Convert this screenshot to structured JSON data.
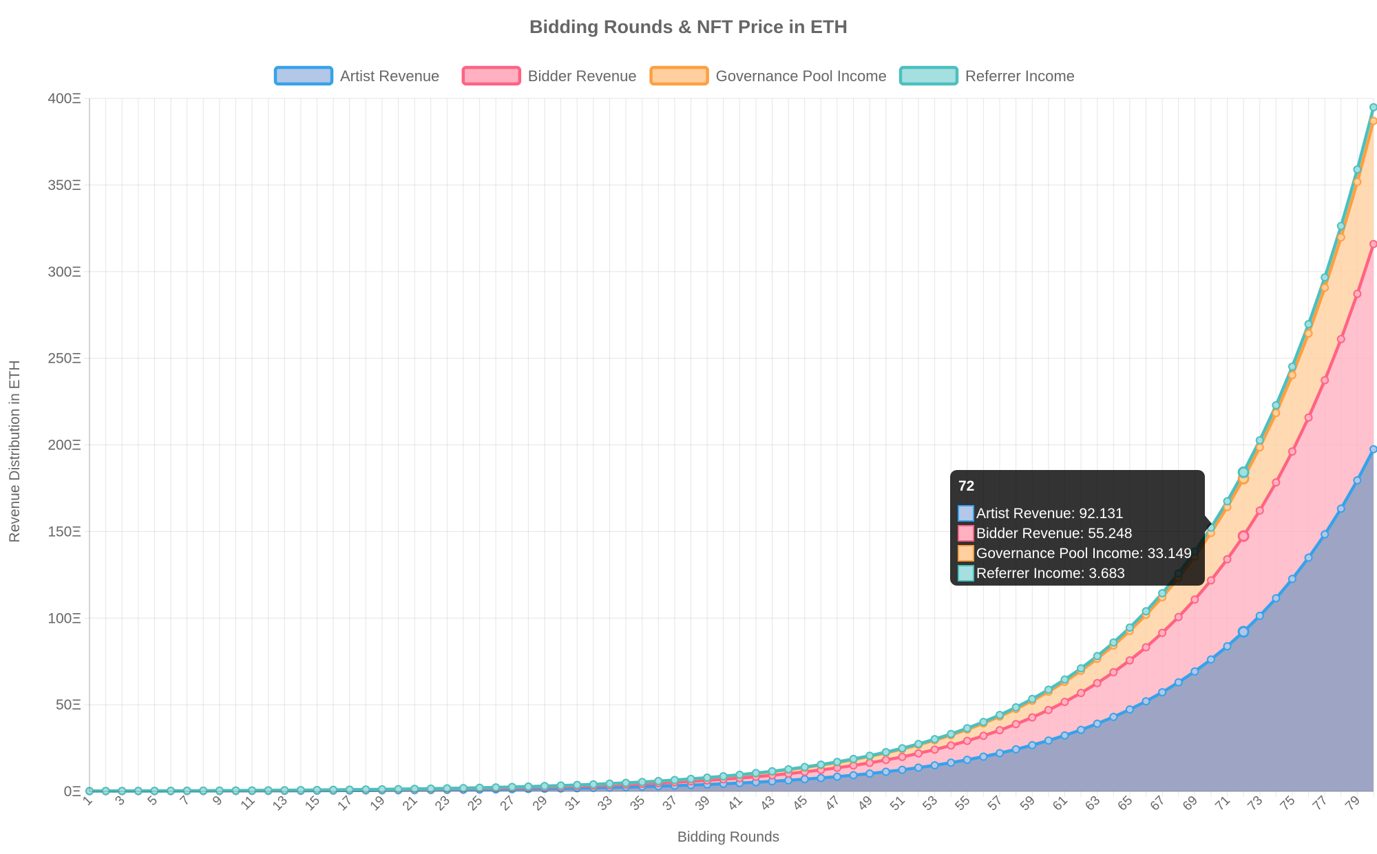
{
  "chart_data": {
    "type": "area",
    "title": "Bidding Rounds & NFT Price in ETH",
    "xlabel": "Bidding Rounds",
    "ylabel": "Revenue Distribution in ETH",
    "ylim": [
      0,
      400
    ],
    "y_ticks": [
      0,
      50,
      100,
      150,
      200,
      250,
      300,
      350,
      400
    ],
    "y_tick_suffix": "Ξ",
    "x_range": [
      1,
      80
    ],
    "x_tick_labels": [
      "1",
      "3",
      "5",
      "7",
      "9",
      "11",
      "13",
      "15",
      "17",
      "19",
      "21",
      "23",
      "25",
      "27",
      "29",
      "31",
      "33",
      "35",
      "37",
      "39",
      "41",
      "43",
      "45",
      "47",
      "49",
      "51",
      "53",
      "55",
      "57",
      "59",
      "61",
      "63",
      "65",
      "67",
      "69",
      "71",
      "73",
      "75",
      "77",
      "79"
    ],
    "stacked": true,
    "grid": true,
    "legend_position": "top",
    "growth_per_round": 1.1,
    "series": [
      {
        "name": "Artist Revenue",
        "color": "#36a2eb",
        "fill": "#b3c7e6",
        "value_at_72": 92.131
      },
      {
        "name": "Bidder Revenue",
        "color": "#ff6384",
        "fill": "#ffb1c1",
        "value_at_72": 55.248
      },
      {
        "name": "Governance Pool Income",
        "color": "#ff9f40",
        "fill": "#ffcf9f",
        "value_at_72": 33.149
      },
      {
        "name": "Referrer Income",
        "color": "#4bc0c0",
        "fill": "#a5dfdf",
        "value_at_72": 3.683
      }
    ],
    "tooltip": {
      "round": "72",
      "lines": [
        "Artist Revenue: 92.131",
        "Bidder Revenue: 55.248",
        "Governance Pool Income: 33.149",
        "Referrer Income: 3.683"
      ]
    }
  }
}
